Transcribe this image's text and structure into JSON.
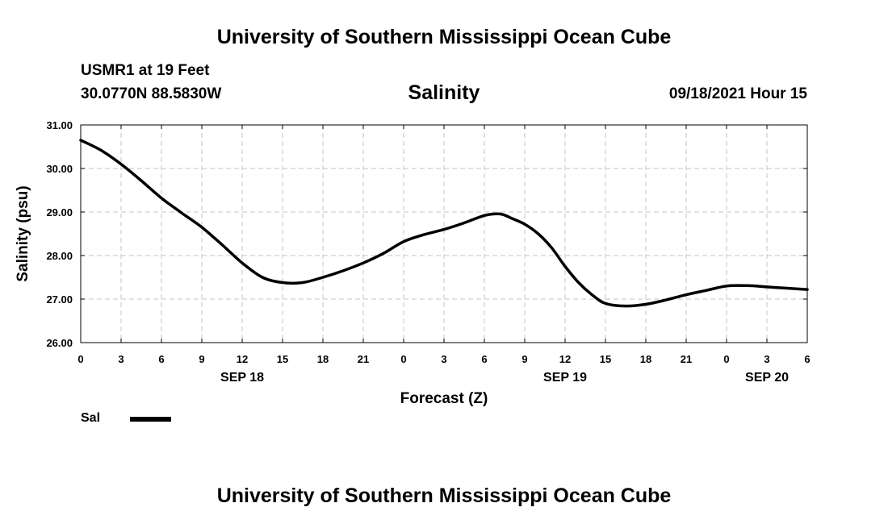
{
  "header": {
    "title": "University of Southern Mississippi Ocean Cube",
    "station": "USMR1 at 19 Feet",
    "coordinates": "30.0770N  88.5830W",
    "timestamp": "09/18/2021 Hour 15"
  },
  "footer": {
    "title": "University of Southern Mississippi Ocean Cube"
  },
  "legend": {
    "label": "Sal",
    "color": "#000000"
  },
  "chart_data": {
    "type": "line",
    "title": "Salinity",
    "xlabel": "Forecast (Z)",
    "ylabel": "Salinity (psu)",
    "grid": true,
    "xlim": [
      0,
      54
    ],
    "ylim": [
      26.0,
      31.0
    ],
    "y_ticks": [
      "26.00",
      "27.00",
      "28.00",
      "29.00",
      "30.00",
      "31.00"
    ],
    "x_tick_labels": [
      "0",
      "3",
      "6",
      "9",
      "12",
      "15",
      "18",
      "21",
      "0",
      "3",
      "6",
      "9",
      "12",
      "15",
      "18",
      "21",
      "0",
      "3",
      "6"
    ],
    "date_labels": [
      {
        "label": "SEP 18",
        "at": 12
      },
      {
        "label": "SEP 19",
        "at": 36
      },
      {
        "label": "SEP 20",
        "at": 51
      }
    ],
    "series": [
      {
        "name": "Sal",
        "x": [
          0,
          1.5,
          3,
          4.5,
          6,
          7.5,
          9,
          10.5,
          12,
          13.5,
          15,
          16.5,
          18,
          19.5,
          21,
          22.5,
          24,
          25.5,
          27,
          28.5,
          30,
          31,
          31.5,
          32,
          33,
          34,
          35,
          36,
          37,
          38,
          39,
          40.5,
          42,
          43.5,
          45,
          46.5,
          48,
          49.5,
          51,
          52.5,
          54
        ],
        "values": [
          30.65,
          30.42,
          30.1,
          29.72,
          29.32,
          28.98,
          28.65,
          28.25,
          27.83,
          27.5,
          27.38,
          27.38,
          27.5,
          27.65,
          27.83,
          28.05,
          28.32,
          28.48,
          28.6,
          28.75,
          28.92,
          28.96,
          28.93,
          28.86,
          28.72,
          28.5,
          28.18,
          27.75,
          27.38,
          27.1,
          26.9,
          26.84,
          26.88,
          26.98,
          27.1,
          27.2,
          27.3,
          27.31,
          27.28,
          27.25,
          27.22
        ]
      }
    ]
  }
}
